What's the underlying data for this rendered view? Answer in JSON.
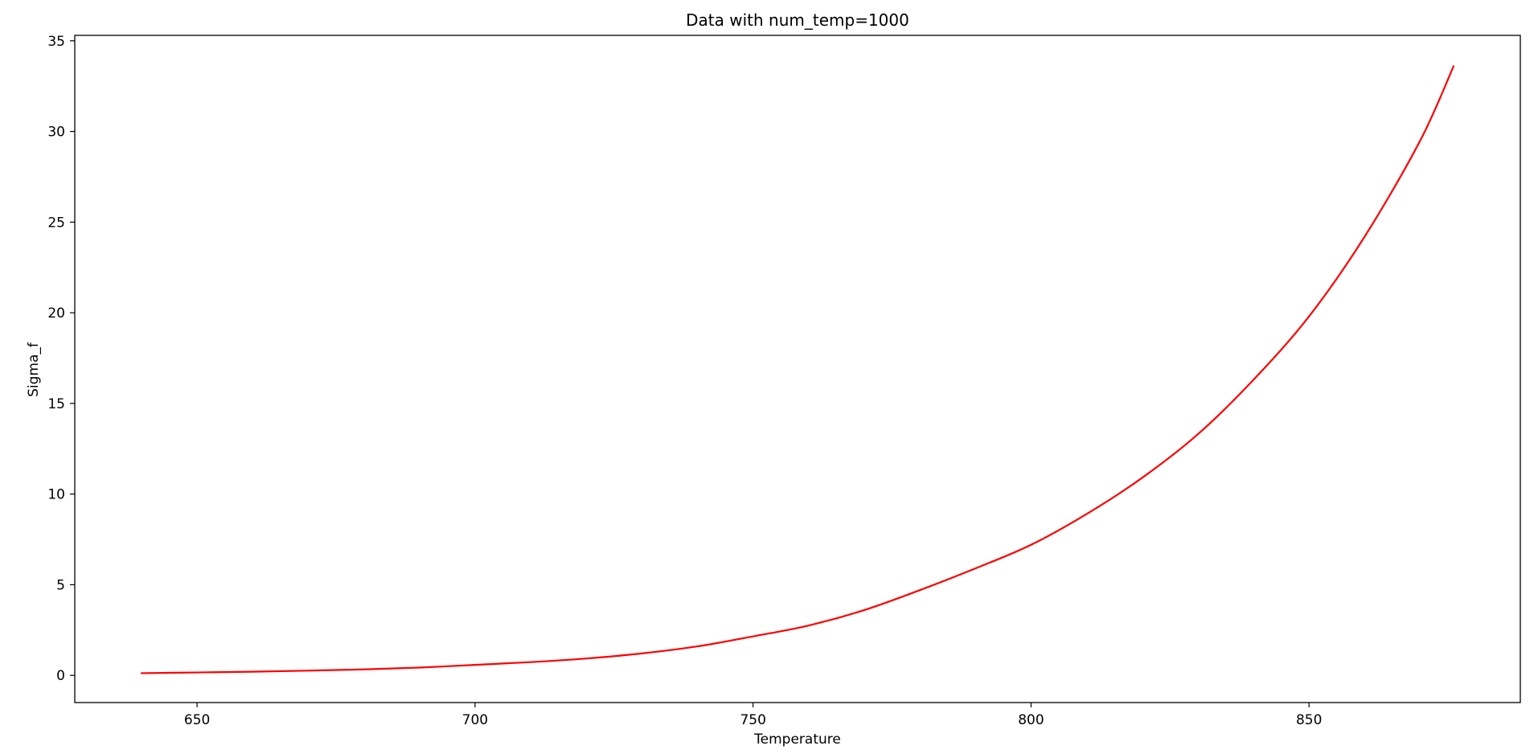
{
  "chart_data": {
    "type": "line",
    "title": "Data with num_temp=1000",
    "xlabel": "Temperature",
    "ylabel": "Sigma_f",
    "xlim": [
      628,
      888
    ],
    "ylim": [
      -1.5,
      35.3
    ],
    "xticks": [
      650,
      700,
      750,
      800,
      850
    ],
    "yticks": [
      0,
      5,
      10,
      15,
      20,
      25,
      30,
      35
    ],
    "grid": false,
    "legend": "none",
    "series": [
      {
        "color": "#ff0000",
        "x": [
          640,
          650,
          660,
          670,
          680,
          690,
          700,
          710,
          720,
          730,
          740,
          750,
          760,
          770,
          780,
          790,
          800,
          810,
          820,
          830,
          840,
          850,
          860,
          870,
          876
        ],
        "y": [
          0.12,
          0.16,
          0.2,
          0.26,
          0.33,
          0.43,
          0.58,
          0.73,
          0.93,
          1.21,
          1.6,
          2.15,
          2.75,
          3.6,
          4.7,
          5.9,
          7.2,
          8.9,
          10.9,
          13.3,
          16.3,
          19.8,
          24.2,
          29.5,
          33.6
        ]
      }
    ]
  }
}
